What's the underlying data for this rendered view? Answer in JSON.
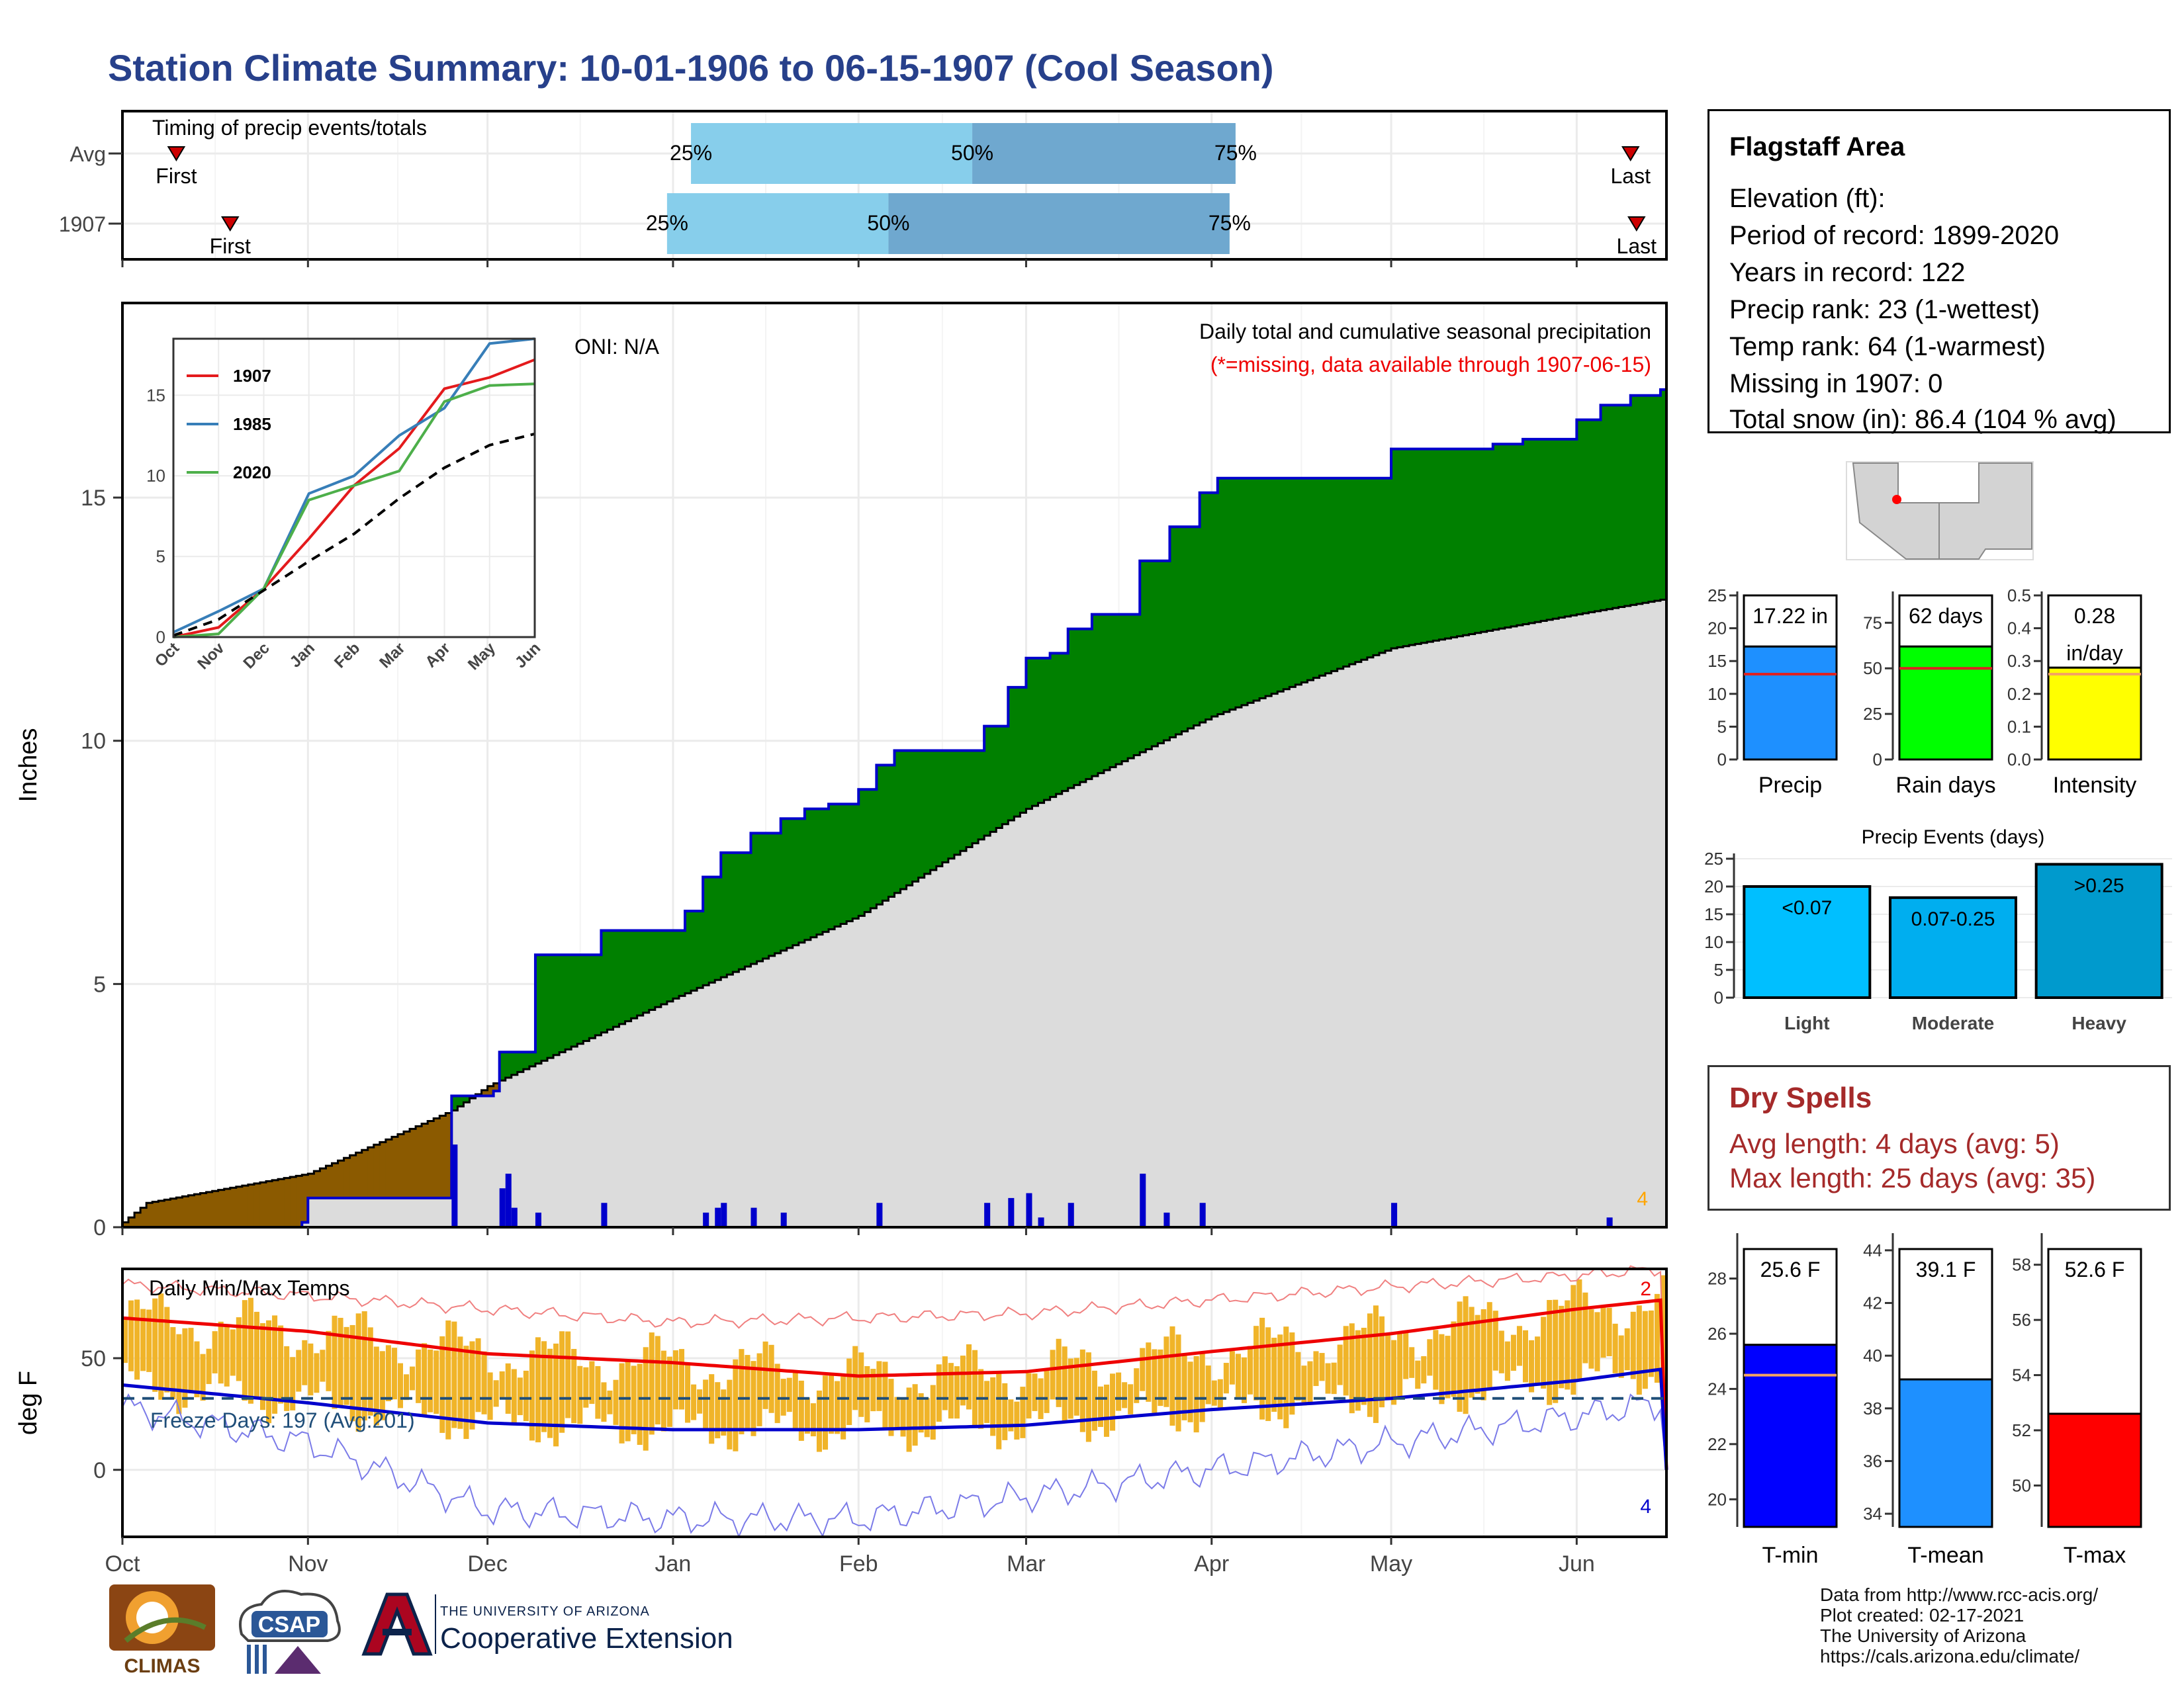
{
  "title": "Station Climate Summary: 10-01-1906 to 06-15-1907 (Cool Season)",
  "chart_data": [
    {
      "type": "range-bar",
      "name": "timing",
      "title": "Timing of precip events/totals",
      "rows": [
        {
          "label": "Avg",
          "first": "Oct 10",
          "p25": "Jan 4",
          "p50": "Feb 20",
          "p75": "Apr 5",
          "last": "Jun 10",
          "first_label": "First",
          "p25_label": "25%",
          "p50_label": "50%",
          "p75_label": "75%",
          "last_label": "Last"
        },
        {
          "label": "1907",
          "first": "Oct 19",
          "p25": "Dec 31",
          "p50": "Feb 6",
          "p75": "Apr 4",
          "last": "Jun 11",
          "first_label": "First",
          "p25_label": "25%",
          "p50_label": "50%",
          "p75_label": "75%",
          "last_label": "Last"
        }
      ],
      "colors": {
        "light": "#87CEEB",
        "dark": "#6FA8CF",
        "marker": "#CC0000"
      }
    },
    {
      "type": "area",
      "name": "cumulative_precip",
      "title": "Daily total and cumulative seasonal precipitation",
      "subtitle": "(*=missing, data available through 1907-06-15)",
      "oni": "ONI: N/A",
      "ylabel": "Inches",
      "ylim": [
        0,
        19
      ],
      "yticks": [
        0,
        5,
        10,
        15
      ],
      "end_count": "4",
      "x_months": [
        "Oct",
        "Nov",
        "Dec",
        "Jan",
        "Feb",
        "Mar",
        "Apr",
        "May",
        "Jun"
      ],
      "cumulative_1907": [
        [
          "Oct 1",
          0.0
        ],
        [
          "Oct 31",
          0.1
        ],
        [
          "Nov 1",
          0.6
        ],
        [
          "Nov 24",
          0.6
        ],
        [
          "Nov 25",
          2.7
        ],
        [
          "Dec 2",
          2.8
        ],
        [
          "Dec 3",
          3.6
        ],
        [
          "Dec 9",
          5.6
        ],
        [
          "Dec 19",
          5.6
        ],
        [
          "Dec 20",
          6.1
        ],
        [
          "Jan 1",
          6.1
        ],
        [
          "Jan 3",
          6.5
        ],
        [
          "Jan 6",
          7.2
        ],
        [
          "Jan 9",
          7.7
        ],
        [
          "Jan 14",
          8.1
        ],
        [
          "Jan 19",
          8.4
        ],
        [
          "Jan 23",
          8.6
        ],
        [
          "Jan 27",
          8.7
        ],
        [
          "Feb 1",
          9.0
        ],
        [
          "Feb 4",
          9.5
        ],
        [
          "Feb 7",
          9.8
        ],
        [
          "Feb 20",
          9.8
        ],
        [
          "Feb 22",
          10.3
        ],
        [
          "Feb 26",
          11.1
        ],
        [
          "Mar 1",
          11.7
        ],
        [
          "Mar 5",
          11.8
        ],
        [
          "Mar 8",
          12.3
        ],
        [
          "Mar 12",
          12.6
        ],
        [
          "Mar 18",
          12.6
        ],
        [
          "Mar 20",
          13.7
        ],
        [
          "Mar 25",
          14.4
        ],
        [
          "Mar 30",
          15.1
        ],
        [
          "Apr 2",
          15.4
        ],
        [
          "Apr 30",
          15.4
        ],
        [
          "May 1",
          16.0
        ],
        [
          "May 18",
          16.1
        ],
        [
          "May 23",
          16.2
        ],
        [
          "Jun 1",
          16.6
        ],
        [
          "Jun 5",
          16.9
        ],
        [
          "Jun 10",
          17.1
        ],
        [
          "Jun 15",
          17.22
        ]
      ],
      "average": [
        [
          "Oct 1",
          0.1
        ],
        [
          "Oct 5",
          0.5
        ],
        [
          "Nov 1",
          1.1
        ],
        [
          "Nov 25",
          2.4
        ],
        [
          "Dec 1",
          2.9
        ],
        [
          "Jan 1",
          4.7
        ],
        [
          "Feb 1",
          6.4
        ],
        [
          "Mar 1",
          8.6
        ],
        [
          "Apr 1",
          10.5
        ],
        [
          "May 1",
          11.9
        ],
        [
          "Jun 1",
          12.6
        ],
        [
          "Jun 15",
          12.9
        ]
      ],
      "daily": [
        [
          "Nov 25",
          1.7
        ],
        [
          "Dec 3",
          0.8
        ],
        [
          "Dec 4",
          1.1
        ],
        [
          "Dec 5",
          0.4
        ],
        [
          "Dec 9",
          0.3
        ],
        [
          "Dec 20",
          0.5
        ],
        [
          "Jan 6",
          0.3
        ],
        [
          "Jan 8",
          0.4
        ],
        [
          "Jan 9",
          0.5
        ],
        [
          "Jan 14",
          0.4
        ],
        [
          "Jan 19",
          0.3
        ],
        [
          "Feb 4",
          0.5
        ],
        [
          "Feb 22",
          0.5
        ],
        [
          "Feb 26",
          0.6
        ],
        [
          "Mar 1",
          0.7
        ],
        [
          "Mar 3",
          0.2
        ],
        [
          "Mar 8",
          0.5
        ],
        [
          "Mar 20",
          1.1
        ],
        [
          "Mar 24",
          0.3
        ],
        [
          "Mar 30",
          0.5
        ],
        [
          "May 1",
          0.5
        ],
        [
          "Jun 6",
          0.2
        ]
      ],
      "colors": {
        "wet": "#008000",
        "dry": "#8B5A00",
        "average": "#DCDCDC",
        "line": "#0000CC"
      }
    },
    {
      "type": "line",
      "name": "inset_cumulative",
      "x": [
        "Oct",
        "Nov",
        "Dec",
        "Jan",
        "Feb",
        "Mar",
        "Apr",
        "May",
        "Jun"
      ],
      "ylim": [
        0,
        18.5
      ],
      "yticks": [
        0,
        5,
        10,
        15
      ],
      "series": [
        {
          "name": "1907",
          "color": "#E41A1C",
          "values": [
            0.0,
            0.6,
            3.0,
            6.1,
            9.4,
            11.7,
            15.4,
            16.1,
            17.2
          ]
        },
        {
          "name": "1985",
          "color": "#377EB8",
          "values": [
            0.3,
            1.6,
            3.0,
            8.9,
            10.0,
            12.5,
            14.2,
            18.2,
            18.5
          ]
        },
        {
          "name": "2020",
          "color": "#4DAF4A",
          "values": [
            0.0,
            0.2,
            3.0,
            8.5,
            9.4,
            10.3,
            14.6,
            15.6,
            15.7
          ]
        },
        {
          "name": "",
          "color": "#000000",
          "dashed": true,
          "values": [
            0.1,
            1.1,
            2.9,
            4.7,
            6.4,
            8.6,
            10.5,
            11.9,
            12.6
          ]
        }
      ]
    },
    {
      "type": "bar",
      "name": "temps",
      "title": "Daily Min/Max Temps",
      "ylabel": "deg F",
      "ylim": [
        -30,
        90
      ],
      "yticks": [
        0,
        50
      ],
      "freeze_line": 32,
      "freeze_label": "Freeze Days: 197 (Avg:201)",
      "count_high": "2",
      "count_low": "4",
      "x_months": [
        "Oct",
        "Nov",
        "Dec",
        "Jan",
        "Feb",
        "Mar",
        "Apr",
        "May",
        "Jun"
      ],
      "avg_max": [
        [
          "Oct 1",
          68
        ],
        [
          "Nov 1",
          62
        ],
        [
          "Dec 1",
          52
        ],
        [
          "Jan 1",
          48
        ],
        [
          "Feb 1",
          42
        ],
        [
          "Mar 1",
          44
        ],
        [
          "Apr 1",
          53
        ],
        [
          "May 1",
          61
        ],
        [
          "Jun 1",
          72
        ],
        [
          "Jun 15",
          76
        ]
      ],
      "avg_min": [
        [
          "Oct 1",
          38
        ],
        [
          "Nov 1",
          30
        ],
        [
          "Dec 1",
          21
        ],
        [
          "Jan 1",
          18
        ],
        [
          "Feb 1",
          18
        ],
        [
          "Mar 1",
          20
        ],
        [
          "Apr 1",
          27
        ],
        [
          "May 1",
          32
        ],
        [
          "Jun 1",
          40
        ],
        [
          "Jun 15",
          45
        ]
      ],
      "rec_max": [
        [
          "Oct 1",
          83
        ],
        [
          "Nov 1",
          78
        ],
        [
          "Dec 1",
          72
        ],
        [
          "Jan 1",
          66
        ],
        [
          "Feb 1",
          68
        ],
        [
          "Mar 1",
          70
        ],
        [
          "Apr 1",
          76
        ],
        [
          "May 1",
          82
        ],
        [
          "Jun 1",
          87
        ],
        [
          "Jun 15",
          90
        ]
      ],
      "rec_min": [
        [
          "Oct 1",
          28
        ],
        [
          "Nov 1",
          12
        ],
        [
          "Dec 1",
          -18
        ],
        [
          "Jan 1",
          -22
        ],
        [
          "Feb 1",
          -22
        ],
        [
          "Mar 1",
          -12
        ],
        [
          "Apr 1",
          0
        ],
        [
          "May 1",
          12
        ],
        [
          "Jun 1",
          24
        ],
        [
          "Jun 15",
          30
        ]
      ],
      "colors": {
        "bars": "#F0B429",
        "avgmax": "#EE0000",
        "avgmin": "#0000CC"
      }
    },
    {
      "type": "bar",
      "name": "precip_summary",
      "panels": [
        {
          "label": "Precip",
          "value": 17.22,
          "text": "17.22 in",
          "avg": 13.0,
          "ylim": [
            0,
            25
          ],
          "yticks": [
            0,
            5,
            10,
            15,
            20,
            25
          ],
          "color": "#1E90FF"
        },
        {
          "label": "Rain days",
          "value": 62,
          "text": "62 days",
          "avg": 50,
          "ylim": [
            0,
            90
          ],
          "yticks": [
            0,
            25,
            50,
            75
          ],
          "color": "#00FF00"
        },
        {
          "label": "Intensity",
          "value": 0.28,
          "text": "0.28 in/day",
          "avg": 0.26,
          "ylim": [
            0,
            0.5
          ],
          "yticks": [
            0.0,
            0.1,
            0.2,
            0.3,
            0.4,
            0.5
          ],
          "color": "#FFFF00"
        }
      ]
    },
    {
      "type": "bar",
      "name": "precip_events",
      "title": "Precip Events (days)",
      "categories": [
        "Light",
        "Moderate",
        "Heavy"
      ],
      "bar_labels": [
        "<0.07",
        "0.07-0.25",
        ">0.25"
      ],
      "values": [
        20,
        18,
        24
      ],
      "ylim": [
        0,
        25
      ],
      "yticks": [
        0,
        5,
        10,
        15,
        20,
        25
      ],
      "colors": [
        "#00BFFF",
        "#00AEEF",
        "#009ACD"
      ]
    },
    {
      "type": "bar",
      "name": "temp_summary",
      "panels": [
        {
          "label": "T-min",
          "value": 25.6,
          "text": "25.6 F",
          "avg": 24.5,
          "ylim": [
            19,
            29.5
          ],
          "yticks": [
            20,
            22,
            24,
            26,
            28
          ],
          "color": "#0000FF"
        },
        {
          "label": "T-mean",
          "value": 39.1,
          "text": "39.1 F",
          "avg": 39.2,
          "ylim": [
            33.5,
            44.5
          ],
          "yticks": [
            34,
            36,
            38,
            40,
            42,
            44
          ],
          "color": "#1E90FF"
        },
        {
          "label": "T-max",
          "value": 52.6,
          "text": "52.6 F",
          "avg": 53.8,
          "ylim": [
            48.5,
            59
          ],
          "yticks": [
            50,
            52,
            54,
            56,
            58
          ],
          "color": "#FF0000"
        }
      ]
    }
  ],
  "station": {
    "name": "Flagstaff Area",
    "elevation": "Elevation (ft):",
    "period": "Period of record: 1899-2020",
    "years": "Years in record: 122",
    "precip_rank": "Precip rank: 23 (1-wettest)",
    "temp_rank": "Temp rank: 64 (1-warmest)",
    "missing": "Missing in 1907: 0",
    "snow": "Total snow (in): 86.4 (104 % avg)"
  },
  "dry_spells": {
    "title": "Dry Spells",
    "avg": "Avg length: 4 days (avg: 5)",
    "max": "Max length: 25 days (avg: 35)"
  },
  "credits": [
    "Data from http://www.rcc-acis.org/",
    "Plot created: 02-17-2021",
    "The University of Arizona",
    "https://cals.arizona.edu/climate/"
  ],
  "logos": {
    "climas": "CLIMAS",
    "csap": "CSAP",
    "ua_small": "THE UNIVERSITY OF ARIZONA",
    "ua_big": "Cooperative Extension"
  }
}
